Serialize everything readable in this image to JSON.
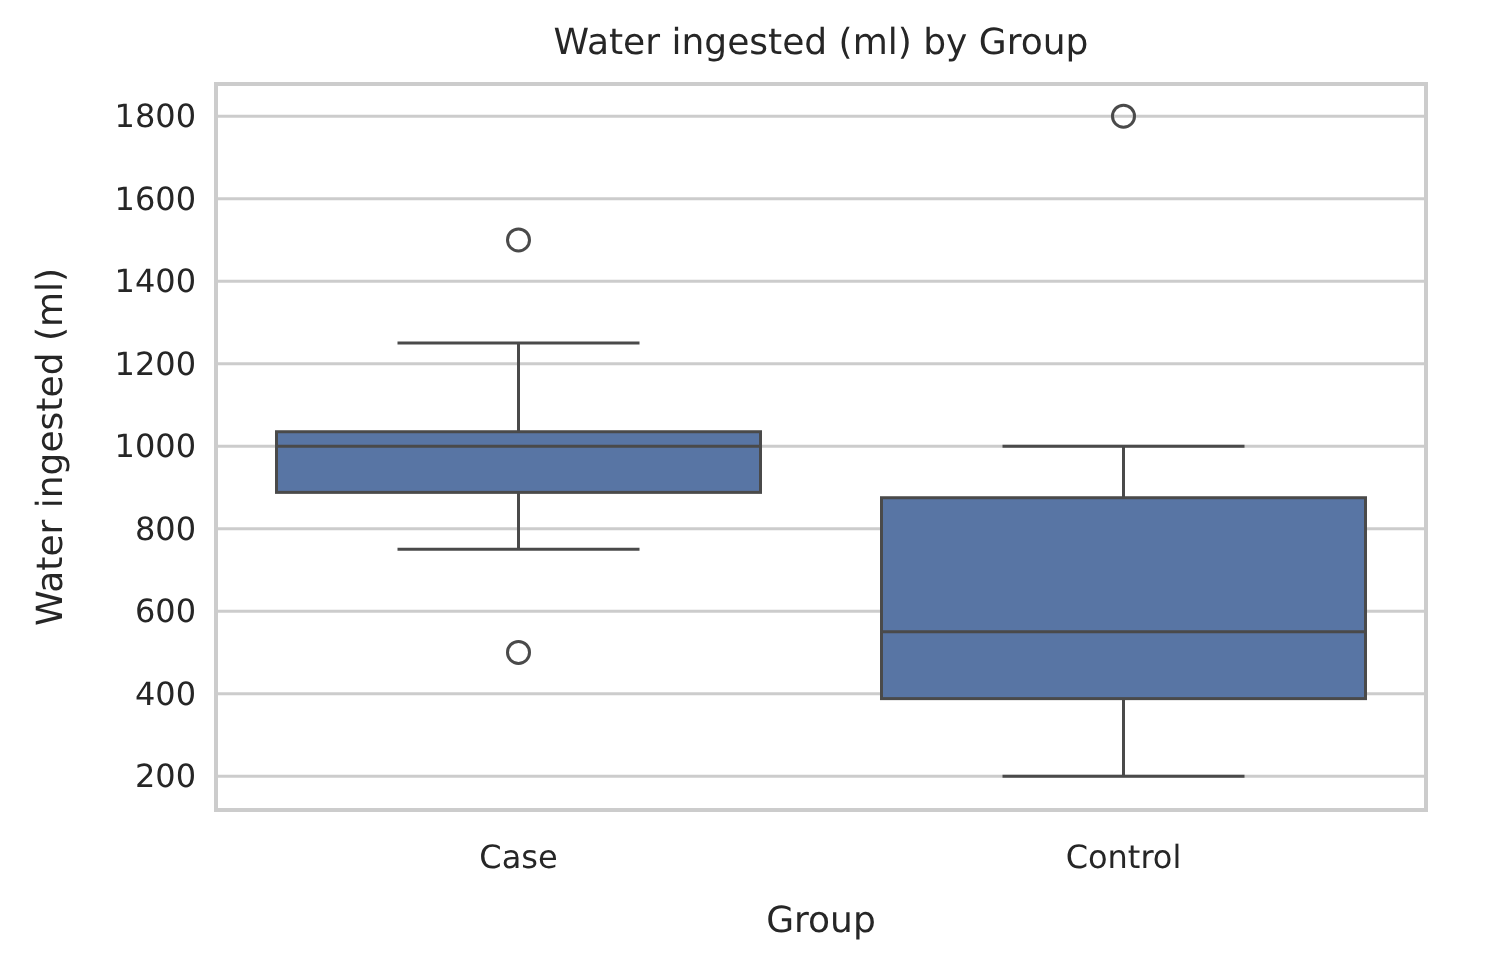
{
  "chart_data": {
    "type": "box",
    "title": "Water ingested (ml) by Group",
    "xlabel": "Group",
    "ylabel": "Water ingested (ml)",
    "categories": [
      "Case",
      "Control"
    ],
    "boxes": [
      {
        "low": 750,
        "q1": 888,
        "median": 1000,
        "q3": 1035,
        "high": 1250,
        "outliers": [
          500,
          1500
        ]
      },
      {
        "low": 200,
        "q1": 388,
        "median": 550,
        "q3": 875,
        "high": 1000,
        "outliers": [
          1800
        ]
      }
    ],
    "color": "#5875a4",
    "ylim": [
      118,
      1878
    ],
    "yticks": [
      200,
      400,
      600,
      800,
      1000,
      1200,
      1400,
      1600,
      1800
    ],
    "grid": "y"
  }
}
